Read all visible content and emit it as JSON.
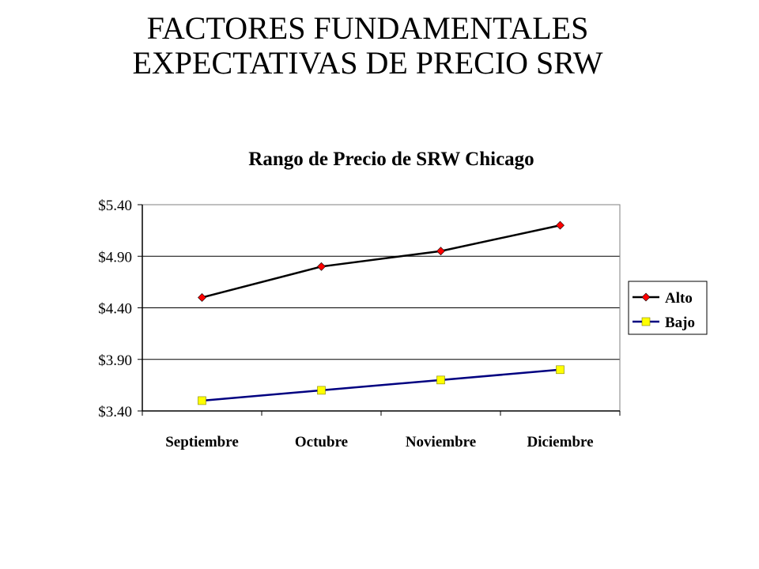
{
  "slide": {
    "title_line1": "FACTORES FUNDAMENTALES",
    "title_line2": "EXPECTATIVAS DE PRECIO SRW"
  },
  "chart_data": {
    "type": "line",
    "title": "Rango de Precio de SRW Chicago",
    "xlabel": "",
    "ylabel": "",
    "categories": [
      "Septiembre",
      "Octubre",
      "Noviembre",
      "Diciembre"
    ],
    "ylim": [
      3.4,
      5.4
    ],
    "yticks": [
      3.4,
      3.9,
      4.4,
      4.9,
      5.4
    ],
    "ytick_labels": [
      "$3.40",
      "$3.90",
      "$4.40",
      "$4.90",
      "$5.40"
    ],
    "grid": true,
    "legend": "right",
    "series": [
      {
        "name": "Alto",
        "values": [
          4.5,
          4.8,
          4.95,
          5.2
        ],
        "line_color": "#000000",
        "marker": "diamond",
        "marker_color": "#ff0000"
      },
      {
        "name": "Bajo",
        "values": [
          3.5,
          3.6,
          3.7,
          3.8
        ],
        "line_color": "#000080",
        "marker": "square",
        "marker_color": "#ffff00"
      }
    ]
  }
}
